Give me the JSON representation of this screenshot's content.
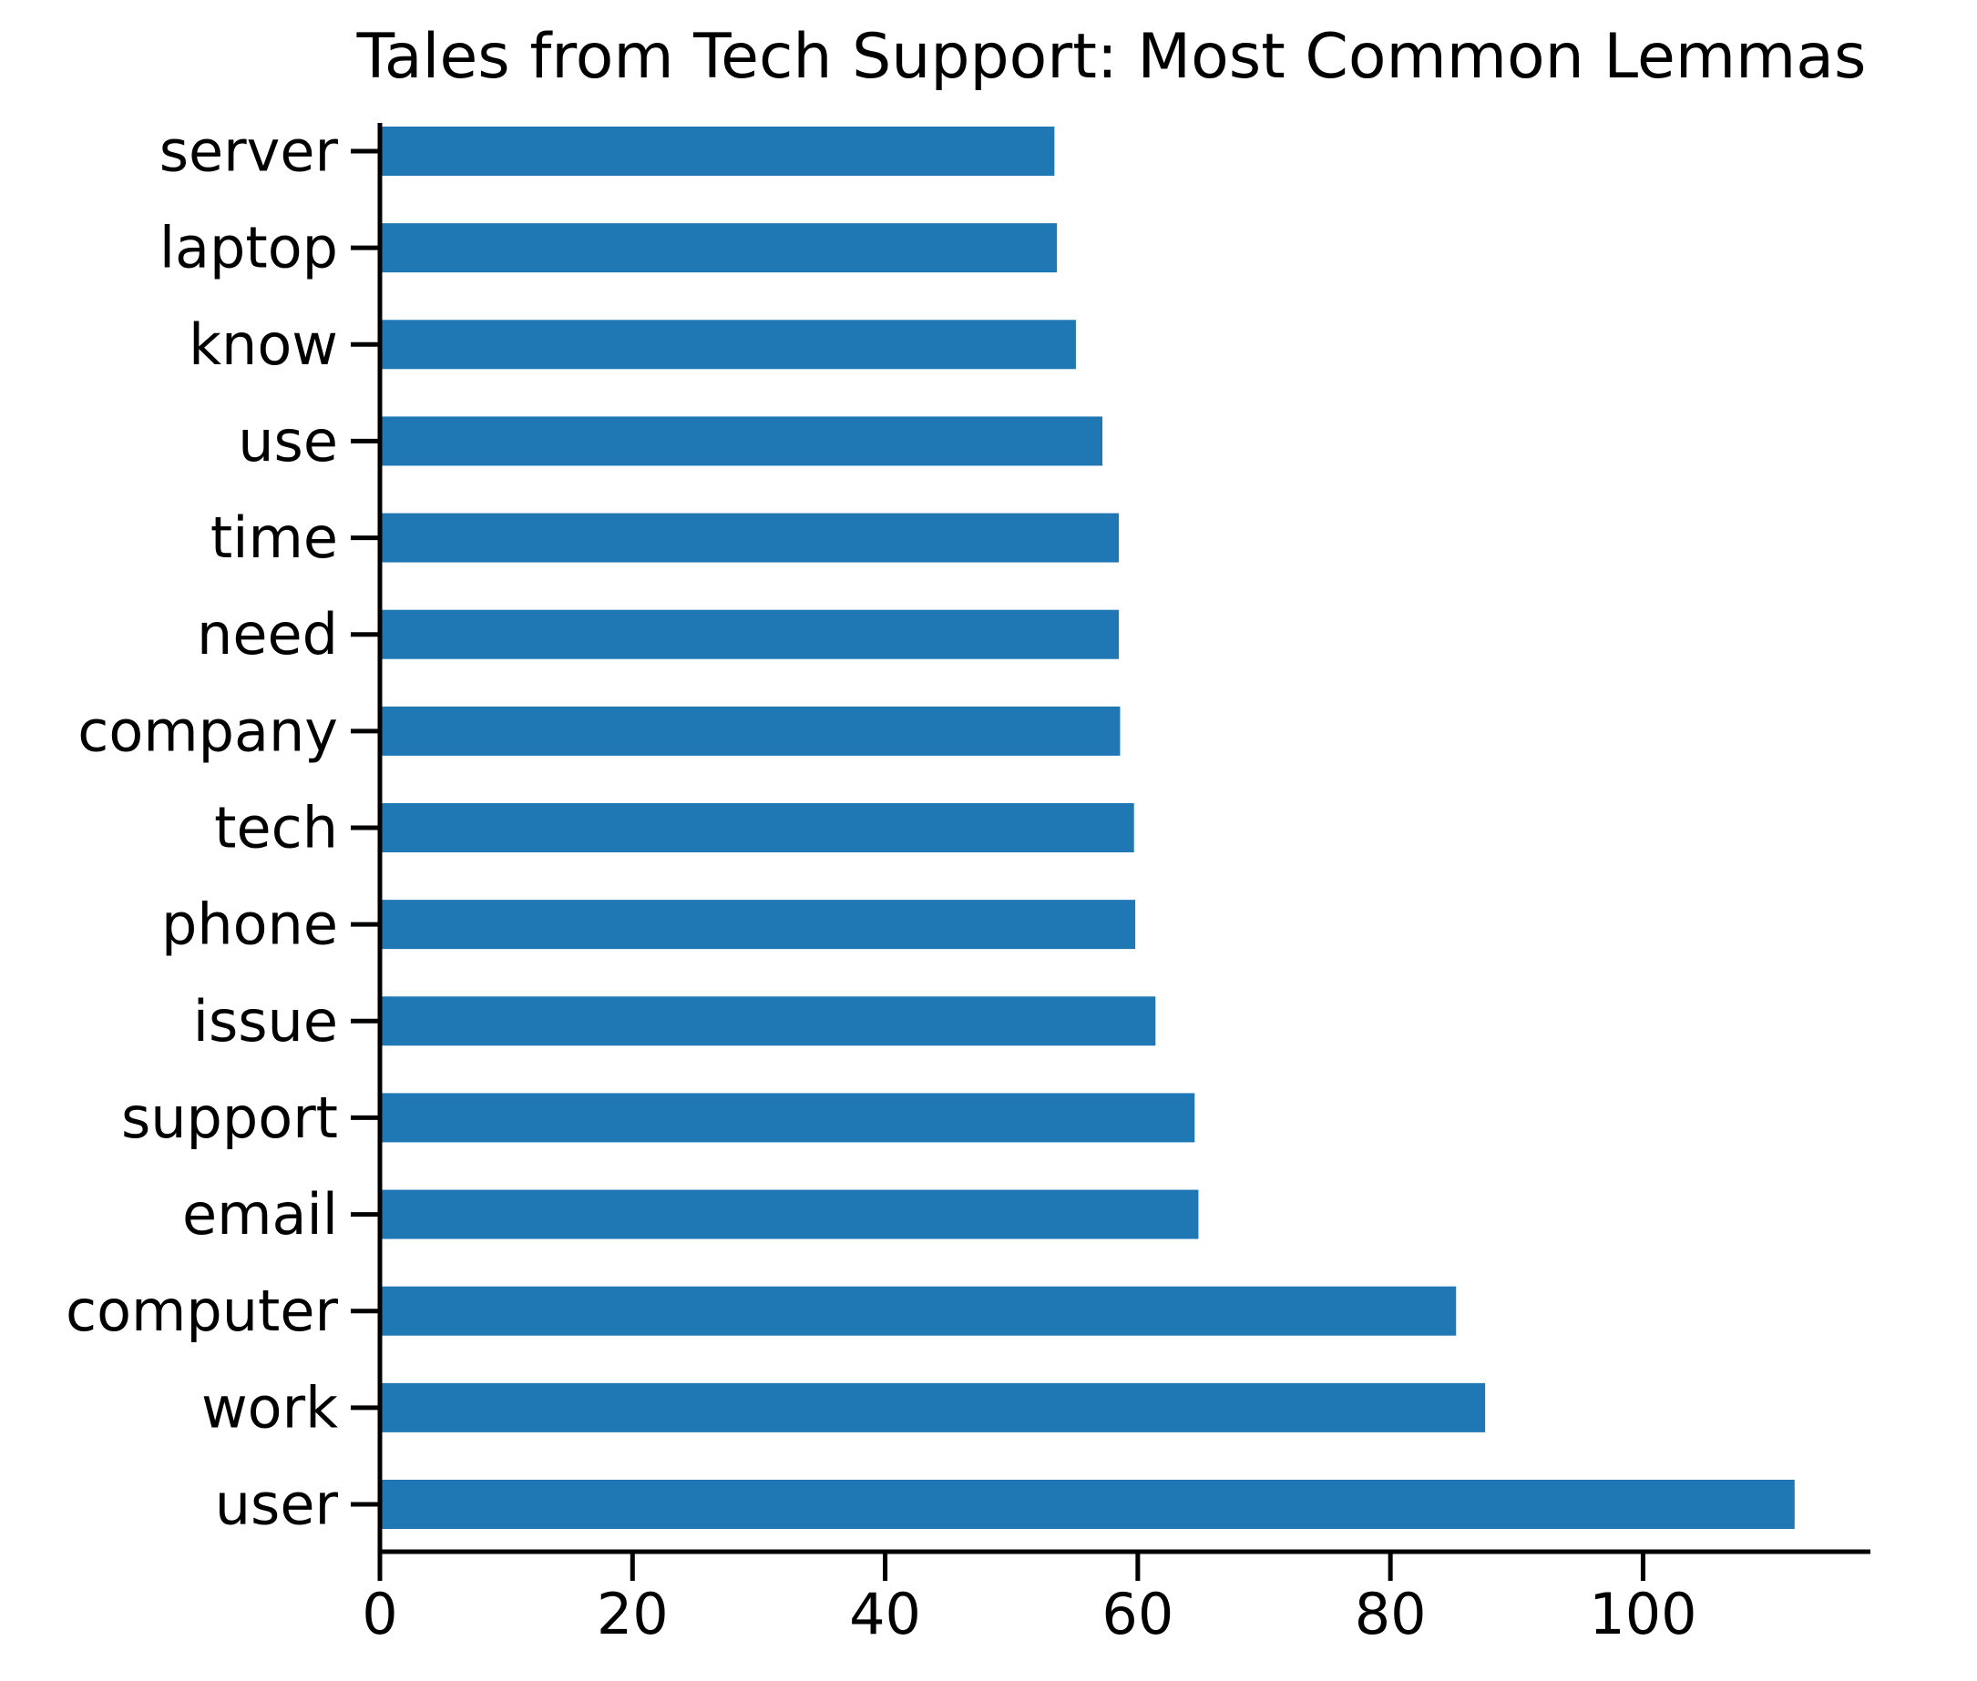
{
  "chart_data": {
    "type": "bar",
    "orientation": "horizontal",
    "title": "Tales from Tech Support: Most Common Lemmas",
    "xlabel": "",
    "ylabel": "",
    "categories": [
      "user",
      "work",
      "computer",
      "email",
      "support",
      "issue",
      "phone",
      "tech",
      "company",
      "need",
      "time",
      "use",
      "know",
      "laptop",
      "server"
    ],
    "values": [
      112,
      87.5,
      85.2,
      64.8,
      64.5,
      61.4,
      59.8,
      59.7,
      58.6,
      58.5,
      58.5,
      57.2,
      55.1,
      53.6,
      53.4
    ],
    "xlim": [
      0,
      118
    ],
    "xticks": [
      0,
      20,
      40,
      60,
      80,
      100
    ],
    "grid": false,
    "legend": "none",
    "bar_color": "#1f77b4",
    "axis_color": "#000000"
  }
}
